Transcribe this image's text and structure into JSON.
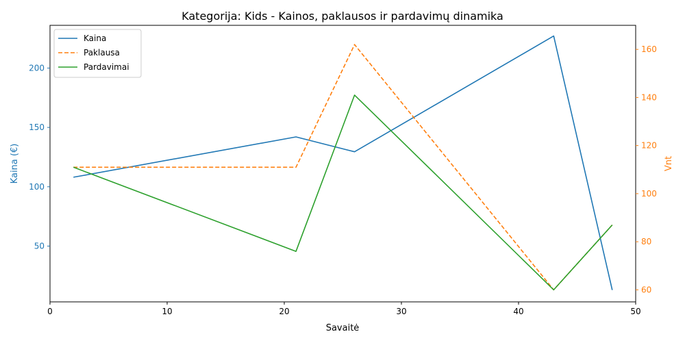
{
  "chart_data": {
    "type": "line",
    "title": "Kategorija: Kids - Kainos, paklausos ir pardavimų dinamika",
    "xlabel": "Savaitė",
    "ylabel_left": "Kaina (€)",
    "ylabel_right": "Vnt",
    "xlim": [
      0,
      50
    ],
    "ylim_left": [
      3,
      236
    ],
    "ylim_right": [
      55,
      170
    ],
    "x_ticks": [
      0,
      10,
      20,
      30,
      40,
      50
    ],
    "y_ticks_left": [
      50,
      100,
      150,
      200
    ],
    "y_ticks_right": [
      60,
      80,
      100,
      120,
      140,
      160
    ],
    "grid": false,
    "legend_position": "top-left",
    "x": [
      2,
      21,
      26,
      43,
      48
    ],
    "series": [
      {
        "name": "Kaina",
        "axis": "left",
        "values": [
          108,
          142,
          129.5,
          227,
          13
        ],
        "color": "#1f77b4",
        "style": "solid"
      },
      {
        "name": "Paklausa",
        "axis": "right",
        "values": [
          111,
          111,
          162,
          60,
          87
        ],
        "color": "#ff7f0e",
        "style": "dashed"
      },
      {
        "name": "Pardavimai",
        "axis": "right",
        "values": [
          111,
          76,
          141,
          60,
          87
        ],
        "color": "#2ca02c",
        "style": "solid"
      }
    ],
    "axis_colors": {
      "left": "#1f77b4",
      "right": "#ff7f0e"
    }
  }
}
